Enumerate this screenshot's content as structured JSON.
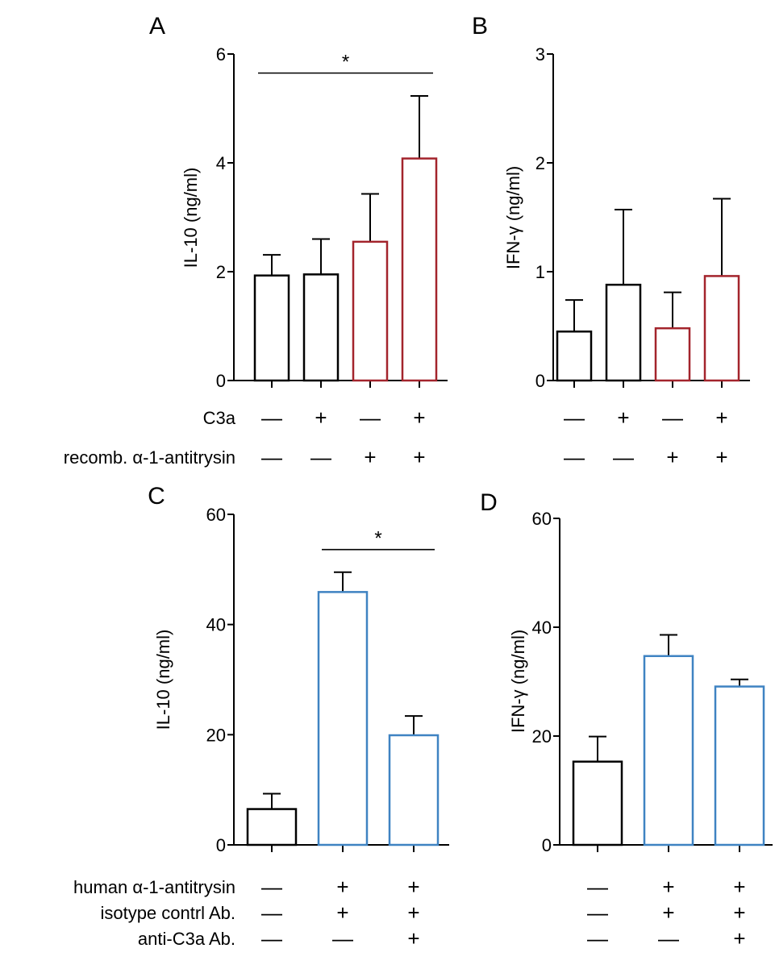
{
  "palette": {
    "axis": "#000000",
    "bar_black": "#000000",
    "bar_red": "#a3242c",
    "bar_blue": "#3f83c2",
    "error_bar": "#000000"
  },
  "chart_data": [
    {
      "panel": "A",
      "type": "bar",
      "ylabel": "IL-10 (ng/ml)",
      "ylim": [
        0,
        6
      ],
      "y_ticks": [
        {
          "value": 0,
          "label": "0"
        },
        {
          "value": 2,
          "label": "2"
        },
        {
          "value": 4,
          "label": "4"
        },
        {
          "value": 6,
          "label": "6"
        }
      ],
      "bars": [
        {
          "value": 1.93,
          "error": 0.38,
          "color": "black"
        },
        {
          "value": 1.95,
          "error": 0.65,
          "color": "black"
        },
        {
          "value": 2.55,
          "error": 0.88,
          "color": "red"
        },
        {
          "value": 4.08,
          "error": 1.15,
          "color": "red"
        }
      ],
      "significance": [
        {
          "from": 0,
          "to": 3,
          "y": 5.65,
          "label": "*"
        }
      ],
      "condition_rows": [
        {
          "label": "C3a",
          "values": [
            "—",
            "+",
            "—",
            "+"
          ]
        },
        {
          "label": "recomb. α-1-antitrysin",
          "values": [
            "—",
            "—",
            "+",
            "+"
          ]
        }
      ]
    },
    {
      "panel": "B",
      "type": "bar",
      "ylabel": "IFN-γ (ng/ml)",
      "ylim": [
        0,
        3
      ],
      "y_ticks": [
        {
          "value": 0,
          "label": "0"
        },
        {
          "value": 1,
          "label": "1"
        },
        {
          "value": 2,
          "label": "2"
        },
        {
          "value": 3,
          "label": "3"
        }
      ],
      "bars": [
        {
          "value": 0.45,
          "error": 0.29,
          "color": "black"
        },
        {
          "value": 0.88,
          "error": 0.69,
          "color": "black"
        },
        {
          "value": 0.48,
          "error": 0.33,
          "color": "red"
        },
        {
          "value": 0.96,
          "error": 0.71,
          "color": "red"
        }
      ],
      "significance": [],
      "condition_rows": [
        {
          "label": "",
          "values": [
            "—",
            "+",
            "—",
            "+"
          ]
        },
        {
          "label": "",
          "values": [
            "—",
            "—",
            "+",
            "+"
          ]
        }
      ]
    },
    {
      "panel": "C",
      "type": "bar",
      "ylabel": "IL-10 (ng/ml)",
      "ylim": [
        0,
        60
      ],
      "y_ticks": [
        {
          "value": 0,
          "label": "0"
        },
        {
          "value": 20,
          "label": "20"
        },
        {
          "value": 40,
          "label": "40"
        },
        {
          "value": 60,
          "label": "60"
        }
      ],
      "bars": [
        {
          "value": 6.5,
          "error": 2.8,
          "color": "black"
        },
        {
          "value": 45.9,
          "error": 3.6,
          "color": "blue"
        },
        {
          "value": 19.9,
          "error": 3.5,
          "color": "blue"
        }
      ],
      "significance": [
        {
          "from": 1,
          "to": 2,
          "y": 53.6,
          "label": "*"
        }
      ],
      "condition_rows": [
        {
          "label": "human α-1-antitrysin",
          "values": [
            "—",
            "+",
            "+"
          ]
        },
        {
          "label": "isotype contrl Ab.",
          "values": [
            "—",
            "+",
            "+"
          ]
        },
        {
          "label": "anti-C3a Ab.",
          "values": [
            "—",
            "—",
            "+"
          ]
        }
      ]
    },
    {
      "panel": "D",
      "type": "bar",
      "ylabel": "IFN-γ (ng/ml)",
      "ylim": [
        0,
        60
      ],
      "y_ticks": [
        {
          "value": 0,
          "label": "0"
        },
        {
          "value": 20,
          "label": "20"
        },
        {
          "value": 40,
          "label": "40"
        },
        {
          "value": 60,
          "label": "60"
        }
      ],
      "bars": [
        {
          "value": 15.3,
          "error": 4.6,
          "color": "black"
        },
        {
          "value": 34.7,
          "error": 3.9,
          "color": "blue"
        },
        {
          "value": 29.1,
          "error": 1.3,
          "color": "blue"
        }
      ],
      "significance": [],
      "condition_rows": [
        {
          "label": "",
          "values": [
            "—",
            "+",
            "+"
          ]
        },
        {
          "label": "",
          "values": [
            "—",
            "+",
            "+"
          ]
        },
        {
          "label": "",
          "values": [
            "—",
            "—",
            "+"
          ]
        }
      ]
    }
  ]
}
